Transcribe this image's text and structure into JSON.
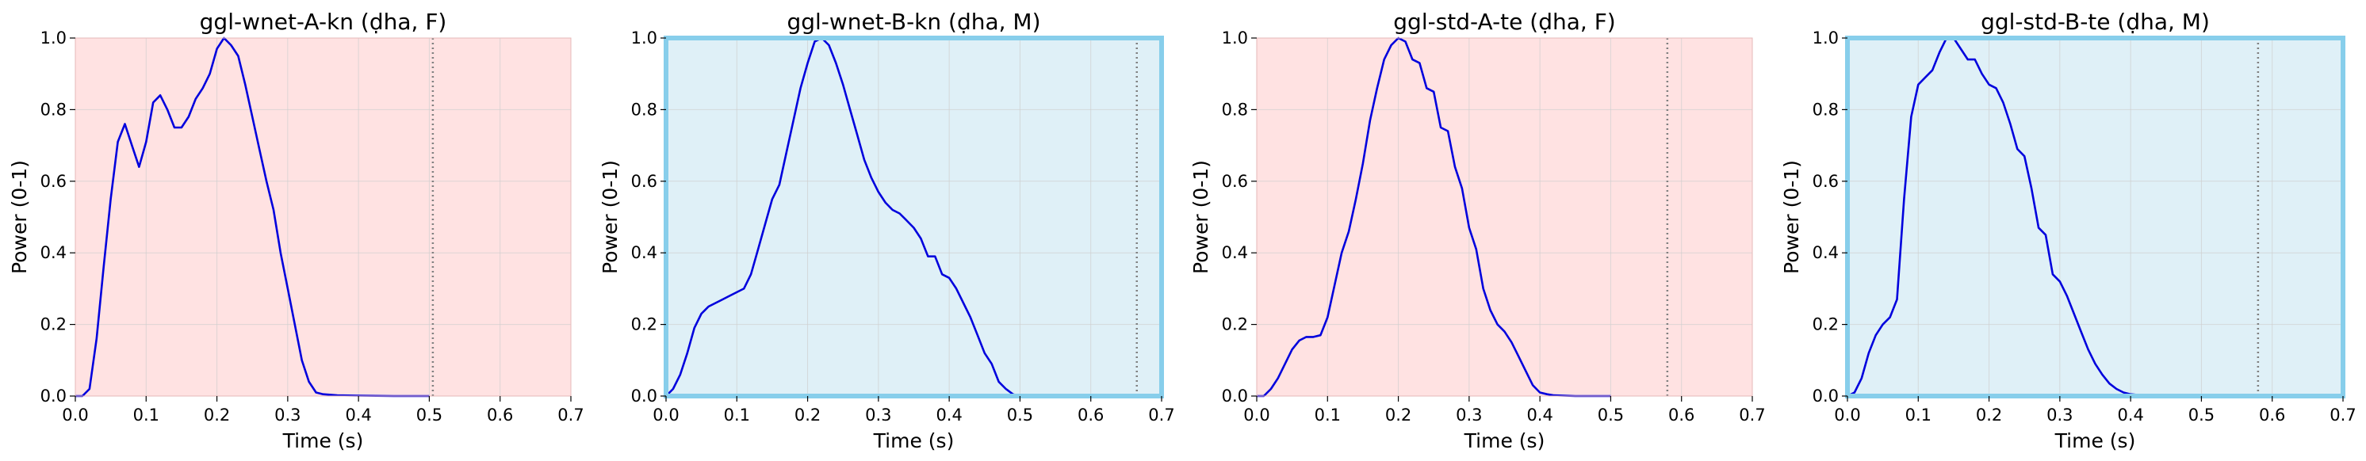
{
  "chart_data": [
    {
      "type": "line",
      "title": "ggl-wnet-A-kn (ḍha, F)",
      "xlabel": "Time (s)",
      "ylabel": "Power (0-1)",
      "xlim": [
        0,
        0.7
      ],
      "ylim": [
        0,
        1.0
      ],
      "xticks": [
        "0.0",
        "0.1",
        "0.2",
        "0.3",
        "0.4",
        "0.5",
        "0.6",
        "0.7"
      ],
      "yticks": [
        "0.0",
        "0.2",
        "0.4",
        "0.6",
        "0.8",
        "1.0"
      ],
      "grid": true,
      "background": "#ffe2e2",
      "frame_color": "",
      "line_color": "#0000dd",
      "vline_x": 0.505,
      "series": [
        {
          "x": [
            0.0,
            0.01,
            0.02,
            0.03,
            0.04,
            0.05,
            0.06,
            0.07,
            0.08,
            0.09,
            0.1,
            0.11,
            0.12,
            0.13,
            0.14,
            0.15,
            0.16,
            0.17,
            0.18,
            0.19,
            0.2,
            0.21,
            0.22,
            0.23,
            0.24,
            0.25,
            0.26,
            0.27,
            0.28,
            0.29,
            0.3,
            0.31,
            0.32,
            0.33,
            0.34,
            0.35,
            0.37,
            0.4,
            0.45,
            0.5
          ],
          "values": [
            0.0,
            0.0,
            0.02,
            0.16,
            0.36,
            0.55,
            0.71,
            0.76,
            0.7,
            0.64,
            0.71,
            0.82,
            0.84,
            0.8,
            0.75,
            0.75,
            0.78,
            0.83,
            0.86,
            0.9,
            0.97,
            1.0,
            0.98,
            0.95,
            0.87,
            0.78,
            0.69,
            0.6,
            0.52,
            0.4,
            0.3,
            0.2,
            0.1,
            0.04,
            0.01,
            0.005,
            0.002,
            0.001,
            0.0,
            0.0
          ]
        }
      ]
    },
    {
      "type": "line",
      "title": "ggl-wnet-B-kn (ḍha, M)",
      "xlabel": "Time (s)",
      "ylabel": "Power (0-1)",
      "xlim": [
        0,
        0.7
      ],
      "ylim": [
        0,
        1.0
      ],
      "xticks": [
        "0.0",
        "0.1",
        "0.2",
        "0.3",
        "0.4",
        "0.5",
        "0.6",
        "0.7"
      ],
      "yticks": [
        "0.0",
        "0.2",
        "0.4",
        "0.6",
        "0.8",
        "1.0"
      ],
      "grid": true,
      "background": "#dff0f7",
      "frame_color": "#87ceeb",
      "line_color": "#0000dd",
      "vline_x": 0.665,
      "series": [
        {
          "x": [
            0.0,
            0.01,
            0.02,
            0.03,
            0.04,
            0.05,
            0.06,
            0.07,
            0.08,
            0.09,
            0.1,
            0.11,
            0.12,
            0.13,
            0.14,
            0.15,
            0.16,
            0.17,
            0.18,
            0.19,
            0.2,
            0.21,
            0.22,
            0.23,
            0.24,
            0.25,
            0.26,
            0.27,
            0.28,
            0.29,
            0.3,
            0.31,
            0.32,
            0.33,
            0.34,
            0.35,
            0.36,
            0.37,
            0.38,
            0.39,
            0.4,
            0.41,
            0.42,
            0.43,
            0.44,
            0.45,
            0.46,
            0.47,
            0.48,
            0.49,
            0.5
          ],
          "values": [
            0.0,
            0.02,
            0.06,
            0.12,
            0.19,
            0.23,
            0.25,
            0.26,
            0.27,
            0.28,
            0.29,
            0.3,
            0.34,
            0.41,
            0.48,
            0.55,
            0.59,
            0.68,
            0.77,
            0.86,
            0.93,
            0.99,
            1.0,
            0.98,
            0.93,
            0.87,
            0.8,
            0.73,
            0.66,
            0.61,
            0.57,
            0.54,
            0.52,
            0.51,
            0.49,
            0.47,
            0.44,
            0.39,
            0.39,
            0.34,
            0.33,
            0.3,
            0.26,
            0.22,
            0.17,
            0.12,
            0.09,
            0.04,
            0.02,
            0.005,
            0.0
          ]
        }
      ]
    },
    {
      "type": "line",
      "title": "ggl-std-A-te (ḍha, F)",
      "xlabel": "Time (s)",
      "ylabel": "Power (0-1)",
      "xlim": [
        0,
        0.7
      ],
      "ylim": [
        0,
        1.0
      ],
      "xticks": [
        "0.0",
        "0.1",
        "0.2",
        "0.3",
        "0.4",
        "0.5",
        "0.6",
        "0.7"
      ],
      "yticks": [
        "0.0",
        "0.2",
        "0.4",
        "0.6",
        "0.8",
        "1.0"
      ],
      "grid": true,
      "background": "#ffe2e2",
      "frame_color": "",
      "line_color": "#0000dd",
      "vline_x": 0.58,
      "series": [
        {
          "x": [
            0.0,
            0.01,
            0.02,
            0.03,
            0.04,
            0.05,
            0.06,
            0.07,
            0.08,
            0.09,
            0.1,
            0.11,
            0.12,
            0.13,
            0.14,
            0.15,
            0.16,
            0.17,
            0.18,
            0.19,
            0.2,
            0.21,
            0.22,
            0.23,
            0.24,
            0.25,
            0.26,
            0.27,
            0.28,
            0.29,
            0.3,
            0.31,
            0.32,
            0.33,
            0.34,
            0.35,
            0.36,
            0.37,
            0.38,
            0.39,
            0.4,
            0.41,
            0.42,
            0.45,
            0.5
          ],
          "values": [
            0.0,
            0.0,
            0.02,
            0.05,
            0.09,
            0.13,
            0.155,
            0.165,
            0.165,
            0.17,
            0.22,
            0.31,
            0.4,
            0.46,
            0.55,
            0.65,
            0.77,
            0.86,
            0.94,
            0.98,
            1.0,
            0.99,
            0.94,
            0.93,
            0.86,
            0.85,
            0.75,
            0.74,
            0.64,
            0.58,
            0.47,
            0.41,
            0.3,
            0.24,
            0.2,
            0.18,
            0.15,
            0.11,
            0.07,
            0.03,
            0.01,
            0.005,
            0.002,
            0.0,
            0.0
          ]
        }
      ]
    },
    {
      "type": "line",
      "title": "ggl-std-B-te (ḍha, M)",
      "xlabel": "Time (s)",
      "ylabel": "Power (0-1)",
      "xlim": [
        0,
        0.7
      ],
      "ylim": [
        0,
        1.0
      ],
      "xticks": [
        "0.0",
        "0.1",
        "0.2",
        "0.3",
        "0.4",
        "0.5",
        "0.6",
        "0.7"
      ],
      "yticks": [
        "0.0",
        "0.2",
        "0.4",
        "0.6",
        "0.8",
        "1.0"
      ],
      "grid": true,
      "background": "#dff0f7",
      "frame_color": "#87ceeb",
      "line_color": "#0000dd",
      "vline_x": 0.58,
      "series": [
        {
          "x": [
            0.0,
            0.01,
            0.02,
            0.03,
            0.04,
            0.05,
            0.06,
            0.07,
            0.08,
            0.09,
            0.1,
            0.11,
            0.12,
            0.13,
            0.14,
            0.15,
            0.16,
            0.17,
            0.18,
            0.19,
            0.2,
            0.21,
            0.22,
            0.23,
            0.24,
            0.25,
            0.26,
            0.27,
            0.28,
            0.29,
            0.3,
            0.31,
            0.32,
            0.33,
            0.34,
            0.35,
            0.36,
            0.37,
            0.38,
            0.39,
            0.4,
            0.41,
            0.42,
            0.45,
            0.5
          ],
          "values": [
            0.0,
            0.01,
            0.05,
            0.12,
            0.17,
            0.2,
            0.22,
            0.27,
            0.55,
            0.78,
            0.87,
            0.89,
            0.91,
            0.96,
            1.0,
            1.0,
            0.97,
            0.94,
            0.94,
            0.9,
            0.87,
            0.86,
            0.82,
            0.76,
            0.69,
            0.67,
            0.58,
            0.47,
            0.45,
            0.34,
            0.32,
            0.28,
            0.23,
            0.18,
            0.13,
            0.09,
            0.06,
            0.035,
            0.02,
            0.01,
            0.005,
            0.003,
            0.002,
            0.0,
            0.0
          ]
        }
      ]
    }
  ]
}
